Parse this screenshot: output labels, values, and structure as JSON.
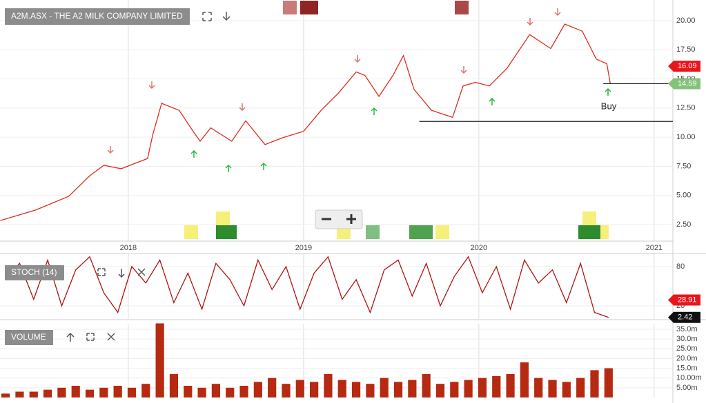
{
  "chart_data": [
    {
      "type": "line",
      "title": "A2M.ASX - THE A2 MILK COMPANY LIMITED",
      "annotation": "Buy",
      "x": [
        2017.27,
        2017.47,
        2017.66,
        2017.78,
        2017.86,
        2017.96,
        2018.06,
        2018.11,
        2018.14,
        2018.19,
        2018.29,
        2018.37,
        2018.41,
        2018.47,
        2018.59,
        2018.67,
        2018.78,
        2018.88,
        2019.0,
        2019.1,
        2019.2,
        2019.3,
        2019.35,
        2019.43,
        2019.51,
        2019.57,
        2019.63,
        2019.73,
        2019.85,
        2019.91,
        2019.98,
        2020.06,
        2020.16,
        2020.29,
        2020.41,
        2020.49,
        2020.59,
        2020.67,
        2020.73,
        2020.75
      ],
      "series": [
        {
          "color": "#e02a1c",
          "values": [
            2.85,
            3.74,
            4.92,
            6.69,
            7.58,
            7.29,
            7.88,
            8.17,
            10.24,
            12.9,
            12.3,
            10.5,
            9.65,
            10.8,
            9.65,
            11.4,
            9.36,
            9.95,
            10.5,
            12.3,
            13.8,
            15.6,
            15.3,
            13.5,
            15.3,
            17.0,
            14.1,
            12.3,
            11.7,
            14.4,
            14.7,
            14.4,
            15.9,
            18.8,
            17.6,
            19.7,
            19.1,
            16.7,
            16.3,
            14.6
          ]
        }
      ],
      "xlim": [
        2017.268,
        2021.107
      ],
      "ylim": [
        1.08,
        21.77
      ],
      "xticks": [
        2018,
        2019,
        2020,
        2021
      ],
      "yticks": [
        {
          "value": 2.5,
          "label": "2.50"
        },
        {
          "value": 5,
          "label": "5.00"
        },
        {
          "value": 7.5,
          "label": "7.50"
        },
        {
          "value": 10,
          "label": "10.00"
        },
        {
          "value": 12.5,
          "label": "12.50"
        },
        {
          "value": 15,
          "label": "15.00"
        },
        {
          "value": 17.5,
          "label": "17.50"
        },
        {
          "value": 20,
          "label": "20.00"
        }
      ],
      "hlines": [
        {
          "value": 14.59,
          "start": 2020.71
        },
        {
          "value": 11.35,
          "start": 2019.66
        }
      ],
      "tags": {
        "values": [
          16.09,
          14.59
        ],
        "colors": [
          "#e8161b",
          "#86c17c"
        ]
      }
    },
    {
      "type": "line",
      "title": "STOCH (14)",
      "x": [
        2017.3,
        2017.38,
        2017.46,
        2017.54,
        2017.62,
        2017.7,
        2017.78,
        2017.86,
        2017.94,
        2018.02,
        2018.1,
        2018.18,
        2018.26,
        2018.34,
        2018.42,
        2018.5,
        2018.58,
        2018.66,
        2018.74,
        2018.82,
        2018.9,
        2018.98,
        2019.06,
        2019.14,
        2019.22,
        2019.3,
        2019.38,
        2019.46,
        2019.54,
        2019.62,
        2019.7,
        2019.78,
        2019.86,
        2019.94,
        2020.02,
        2020.1,
        2020.18,
        2020.26,
        2020.34,
        2020.42,
        2020.5,
        2020.58,
        2020.66,
        2020.74
      ],
      "series": [
        {
          "color": "#b01010",
          "values": [
            60,
            85,
            30,
            90,
            20,
            75,
            95,
            40,
            10,
            80,
            55,
            90,
            25,
            70,
            15,
            85,
            60,
            20,
            90,
            45,
            80,
            15,
            70,
            95,
            30,
            60,
            10,
            75,
            90,
            35,
            85,
            20,
            65,
            95,
            40,
            80,
            15,
            90,
            55,
            75,
            25,
            85,
            10,
            2.42
          ]
        }
      ],
      "xlim": [
        2017.268,
        2021.107
      ],
      "ylim": [
        0,
        100
      ],
      "yticks": [
        20,
        80
      ],
      "tags": {
        "values": [
          28.91,
          2.42
        ],
        "colors": [
          "#e8161b",
          "#111111"
        ]
      }
    },
    {
      "type": "bar",
      "title": "VOLUME",
      "x": [
        2017.3,
        2017.38,
        2017.46,
        2017.54,
        2017.62,
        2017.7,
        2017.78,
        2017.86,
        2017.94,
        2018.02,
        2018.1,
        2018.18,
        2018.26,
        2018.34,
        2018.42,
        2018.5,
        2018.58,
        2018.66,
        2018.74,
        2018.82,
        2018.9,
        2018.98,
        2019.06,
        2019.14,
        2019.22,
        2019.3,
        2019.38,
        2019.46,
        2019.54,
        2019.62,
        2019.7,
        2019.78,
        2019.86,
        2019.94,
        2020.02,
        2020.1,
        2020.18,
        2020.26,
        2020.34,
        2020.42,
        2020.5,
        2020.58,
        2020.66,
        2020.74
      ],
      "values": [
        2,
        3,
        3,
        4,
        5,
        6,
        4,
        5,
        6,
        5,
        7,
        38,
        12,
        6,
        5,
        7,
        5,
        6,
        8,
        10,
        7,
        9,
        8,
        12,
        9,
        8,
        7,
        10,
        8,
        9,
        12,
        7,
        8,
        9,
        10,
        11,
        12,
        18,
        10,
        9,
        8,
        10,
        14,
        15
      ],
      "color": "#b52a10",
      "xlim": [
        2017.268,
        2021.107
      ],
      "ylim": [
        0,
        37.8
      ],
      "yticks": [
        {
          "value": 5,
          "label": "5.00m"
        },
        {
          "value": 10,
          "label": "10.00m"
        },
        {
          "value": 15,
          "label": "15.0m"
        },
        {
          "value": 20,
          "label": "20.0m"
        },
        {
          "value": 25,
          "label": "25.0m"
        },
        {
          "value": 30,
          "label": "30.0m"
        },
        {
          "value": 35,
          "label": "35.0m"
        }
      ]
    }
  ]
}
